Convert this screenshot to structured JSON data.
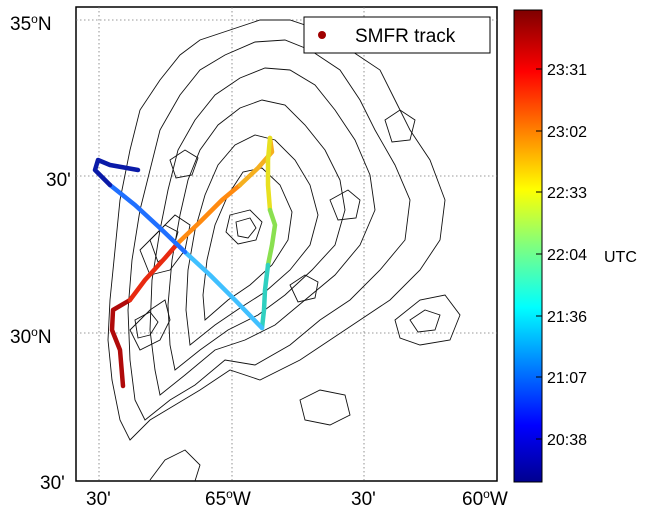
{
  "map": {
    "lat_labels": [
      {
        "main": "35",
        "sup": "o",
        "suffix": "N"
      },
      {
        "main": "30'",
        "sup": "",
        "suffix": ""
      },
      {
        "main": "30",
        "sup": "o",
        "suffix": "N"
      },
      {
        "main": "30'",
        "sup": "",
        "suffix": ""
      }
    ],
    "lon_labels": [
      {
        "main": "30'",
        "sup": "",
        "suffix": ""
      },
      {
        "main": "65",
        "sup": "o",
        "suffix": "W"
      },
      {
        "main": "30'",
        "sup": "",
        "suffix": ""
      },
      {
        "main": "60",
        "sup": "o",
        "suffix": "W"
      }
    ],
    "legend_label": "SMFR track",
    "track_color_low": "#0a1aa8",
    "track_color_high": "#b00a0a"
  },
  "colorbar": {
    "ticks": [
      "23:31",
      "23:02",
      "22:33",
      "22:04",
      "21:36",
      "21:07",
      "20:38"
    ],
    "unit_label": "UTC",
    "colors": [
      "#00007f",
      "#0000ff",
      "#007fff",
      "#00ffff",
      "#7fff7f",
      "#ffff00",
      "#ff7f00",
      "#ff0000",
      "#7f0000"
    ]
  }
}
